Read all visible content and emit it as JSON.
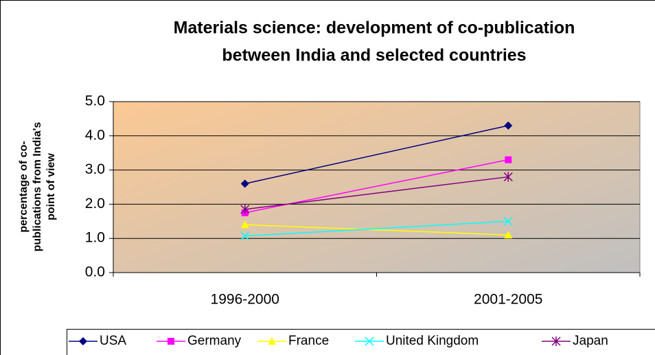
{
  "chart_data": {
    "type": "line",
    "title": [
      "Materials science: development of co-publication",
      "between India and selected countries"
    ],
    "y_label": [
      "percentage of co-",
      "publications from India's",
      "point of view"
    ],
    "categories": [
      "1996-2000",
      "2001-2005"
    ],
    "series": [
      {
        "name": "USA",
        "color": "#000080",
        "marker": "diamond",
        "values": [
          2.6,
          4.3
        ]
      },
      {
        "name": "Germany",
        "color": "#ff00ff",
        "marker": "square",
        "values": [
          1.75,
          3.3
        ]
      },
      {
        "name": "France",
        "color": "#ffff00",
        "marker": "triangle",
        "values": [
          1.4,
          1.1
        ]
      },
      {
        "name": "United Kingdom",
        "color": "#00ffff",
        "marker": "x",
        "values": [
          1.07,
          1.5
        ]
      },
      {
        "name": "Japan",
        "color": "#800080",
        "marker": "star",
        "values": [
          1.85,
          2.8
        ]
      }
    ],
    "ylim": [
      0,
      5
    ],
    "yticks": [
      {
        "value": 0,
        "label": "0.0"
      },
      {
        "value": 1,
        "label": "1.0"
      },
      {
        "value": 2,
        "label": "2.0"
      },
      {
        "value": 3,
        "label": "3.0"
      },
      {
        "value": 4,
        "label": "4.0"
      },
      {
        "value": 5,
        "label": "5.0"
      }
    ],
    "grid": true,
    "legend": "bottom"
  }
}
